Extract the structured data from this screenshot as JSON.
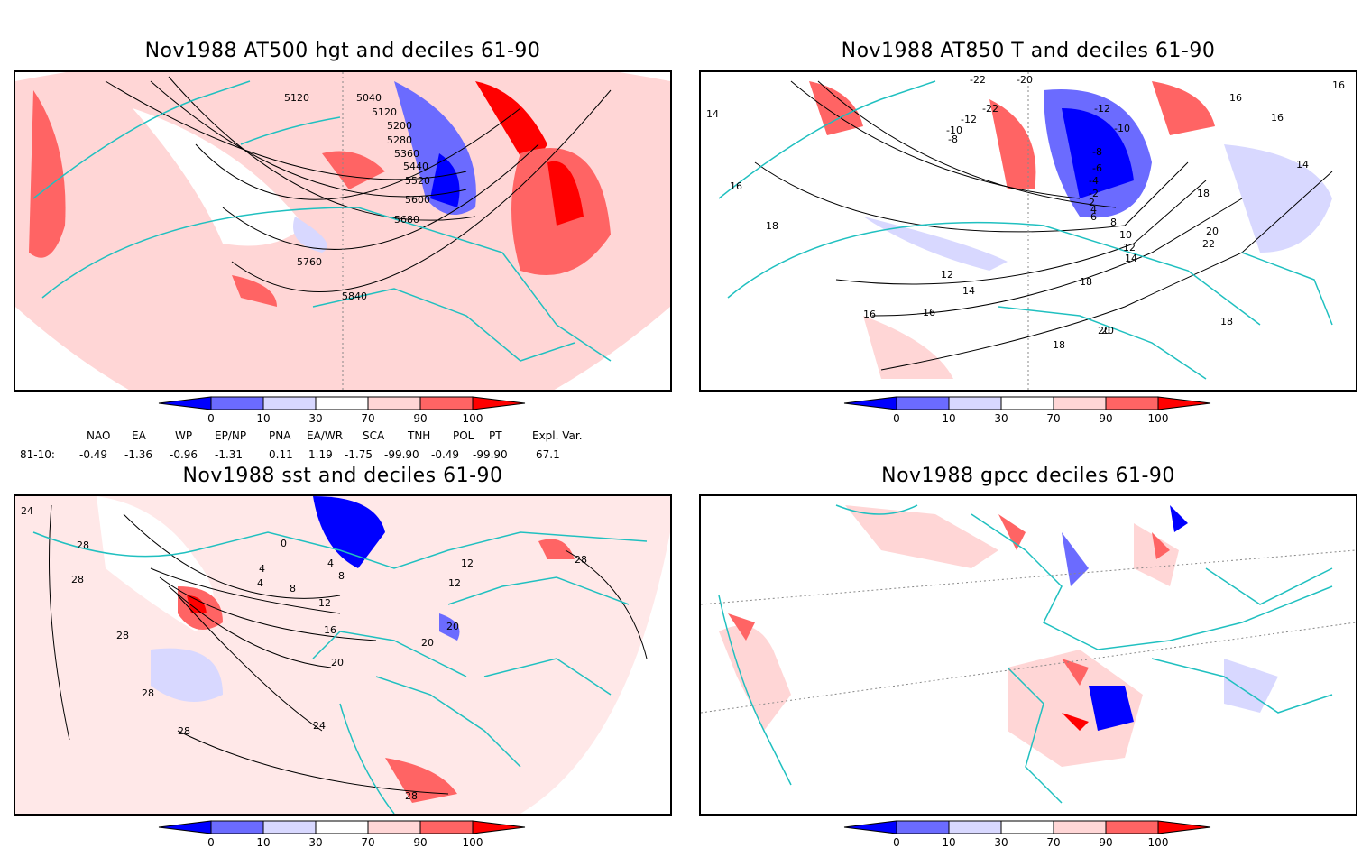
{
  "panels": [
    {
      "id": "p1",
      "title": "Nov1988 AT500 hgt and deciles 61-90",
      "contour_labels": [
        "5040",
        "5120",
        "5120",
        "5200",
        "5280",
        "5360",
        "5440",
        "5520",
        "5600",
        "5680",
        "5760",
        "5840"
      ]
    },
    {
      "id": "p2",
      "title": "Nov1988 AT850 T and deciles 61-90",
      "contour_labels": [
        "-22",
        "-20",
        "-22",
        "-12",
        "-10",
        "-8",
        "-12",
        "-10",
        "-8",
        "-6",
        "-4",
        "-2",
        "2",
        "4",
        "6",
        "8",
        "10",
        "12",
        "14",
        "16",
        "16",
        "16",
        "14",
        "14",
        "16",
        "18",
        "18",
        "20",
        "20",
        "22",
        "12",
        "14",
        "16",
        "16",
        "18",
        "20",
        "18",
        "18"
      ]
    },
    {
      "id": "p3",
      "title": "Nov1988 sst and deciles 61-90",
      "contour_labels": [
        "24",
        "28",
        "28",
        "28",
        "28",
        "28",
        "28",
        "28",
        "0",
        "4",
        "4",
        "4",
        "8",
        "8",
        "12",
        "16",
        "20",
        "20",
        "24",
        "12",
        "12",
        "20"
      ]
    },
    {
      "id": "p4",
      "title": "Nov1988 gpcc deciles 61-90",
      "contour_labels": []
    }
  ],
  "colorbar": {
    "ticks": [
      "0",
      "10",
      "30",
      "70",
      "90",
      "100"
    ],
    "colors": [
      "#0000ff",
      "#6b6bff",
      "#d8d8ff",
      "#ffffff",
      "#ffd6d6",
      "#ff6464",
      "#ff0000"
    ]
  },
  "indices": {
    "header": [
      "NAO",
      "EA",
      "WP",
      "EP/NP",
      "PNA",
      "EA/WR",
      "SCA",
      "TNH",
      "POL",
      "PT",
      "Expl. Var."
    ],
    "row_label": "81-10:",
    "values": [
      "-0.49",
      "-1.36",
      "-0.96",
      "-1.31",
      "0.11",
      "1.19",
      "-1.75",
      "-99.90",
      "-0.49",
      "-99.90",
      "67.1"
    ]
  },
  "colors": {
    "coast": "#20c0c0",
    "contour": "#000000",
    "grid": "#888888"
  }
}
